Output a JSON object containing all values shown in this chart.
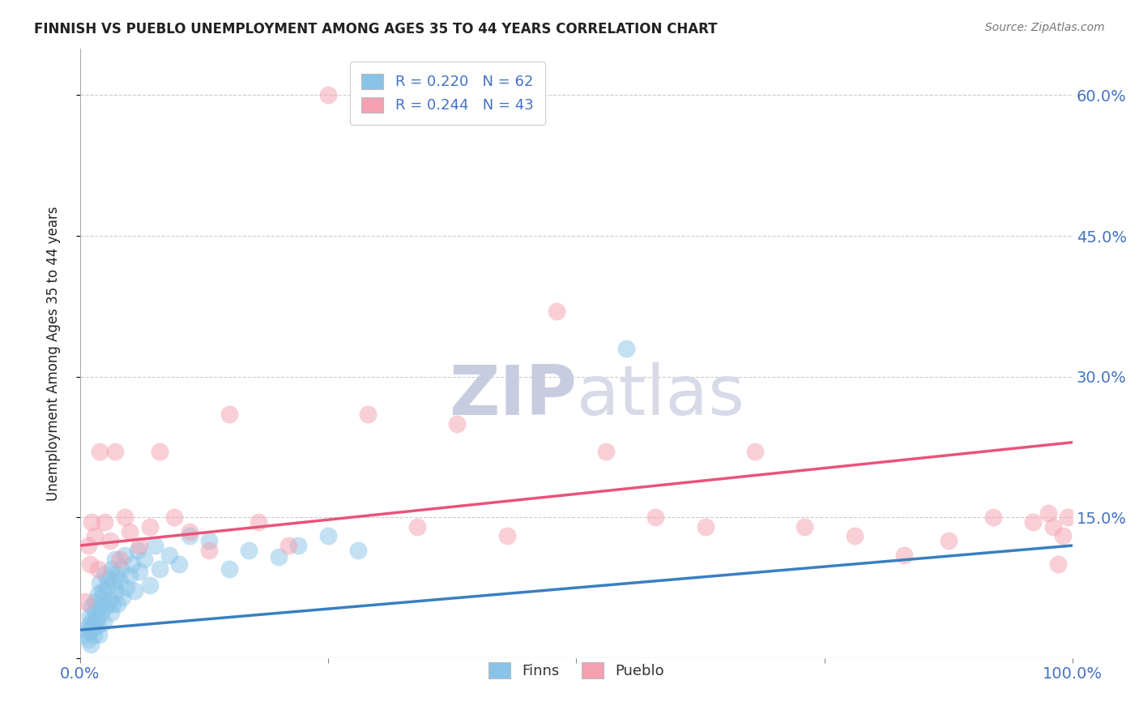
{
  "title": "FINNISH VS PUEBLO UNEMPLOYMENT AMONG AGES 35 TO 44 YEARS CORRELATION CHART",
  "source": "Source: ZipAtlas.com",
  "ylabel": "Unemployment Among Ages 35 to 44 years",
  "xlim": [
    0,
    1.0
  ],
  "ylim": [
    0,
    0.65
  ],
  "ytick_positions": [
    0.0,
    0.15,
    0.3,
    0.45,
    0.6
  ],
  "ytick_labels_right": [
    "",
    "15.0%",
    "30.0%",
    "45.0%",
    "60.0%"
  ],
  "finns_color": "#89c4e8",
  "pueblo_color": "#f4a0b0",
  "finns_line_color": "#3a7fc1",
  "pueblo_line_color": "#e8547a",
  "background_color": "#ffffff",
  "grid_color": "#cccccc",
  "title_color": "#222222",
  "tick_label_color_blue": "#4472c4",
  "watermark_color": "#dde0ec",
  "finns_scatter_x": [
    0.005,
    0.007,
    0.008,
    0.009,
    0.01,
    0.01,
    0.011,
    0.012,
    0.012,
    0.013,
    0.014,
    0.015,
    0.015,
    0.016,
    0.017,
    0.018,
    0.018,
    0.019,
    0.02,
    0.02,
    0.021,
    0.022,
    0.023,
    0.024,
    0.025,
    0.026,
    0.027,
    0.028,
    0.03,
    0.031,
    0.032,
    0.033,
    0.034,
    0.035,
    0.036,
    0.037,
    0.038,
    0.04,
    0.042,
    0.043,
    0.045,
    0.047,
    0.05,
    0.052,
    0.055,
    0.058,
    0.06,
    0.065,
    0.07,
    0.075,
    0.08,
    0.09,
    0.1,
    0.11,
    0.13,
    0.15,
    0.17,
    0.2,
    0.22,
    0.25,
    0.28,
    0.55
  ],
  "finns_scatter_y": [
    0.025,
    0.03,
    0.02,
    0.035,
    0.028,
    0.045,
    0.015,
    0.04,
    0.055,
    0.032,
    0.025,
    0.06,
    0.038,
    0.05,
    0.042,
    0.035,
    0.068,
    0.025,
    0.055,
    0.08,
    0.048,
    0.065,
    0.072,
    0.038,
    0.09,
    0.055,
    0.075,
    0.085,
    0.062,
    0.048,
    0.095,
    0.058,
    0.08,
    0.105,
    0.072,
    0.09,
    0.058,
    0.082,
    0.095,
    0.065,
    0.11,
    0.075,
    0.088,
    0.1,
    0.072,
    0.115,
    0.092,
    0.105,
    0.078,
    0.12,
    0.095,
    0.11,
    0.1,
    0.13,
    0.125,
    0.095,
    0.115,
    0.108,
    0.12,
    0.13,
    0.115,
    0.33
  ],
  "pueblo_scatter_x": [
    0.005,
    0.008,
    0.01,
    0.012,
    0.015,
    0.018,
    0.02,
    0.025,
    0.03,
    0.035,
    0.04,
    0.045,
    0.05,
    0.06,
    0.07,
    0.08,
    0.095,
    0.11,
    0.13,
    0.15,
    0.18,
    0.21,
    0.25,
    0.29,
    0.34,
    0.38,
    0.43,
    0.48,
    0.53,
    0.58,
    0.63,
    0.68,
    0.73,
    0.78,
    0.83,
    0.875,
    0.92,
    0.96,
    0.975,
    0.98,
    0.985,
    0.99,
    0.995
  ],
  "pueblo_scatter_y": [
    0.06,
    0.12,
    0.1,
    0.145,
    0.13,
    0.095,
    0.22,
    0.145,
    0.125,
    0.22,
    0.105,
    0.15,
    0.135,
    0.12,
    0.14,
    0.22,
    0.15,
    0.135,
    0.115,
    0.26,
    0.145,
    0.12,
    0.6,
    0.26,
    0.14,
    0.25,
    0.13,
    0.37,
    0.22,
    0.15,
    0.14,
    0.22,
    0.14,
    0.13,
    0.11,
    0.125,
    0.15,
    0.145,
    0.155,
    0.14,
    0.1,
    0.13,
    0.15
  ],
  "finns_trend_x": [
    0.0,
    1.0
  ],
  "finns_trend_y": [
    0.03,
    0.12
  ],
  "pueblo_trend_x": [
    0.0,
    1.0
  ],
  "pueblo_trend_y": [
    0.12,
    0.23
  ]
}
